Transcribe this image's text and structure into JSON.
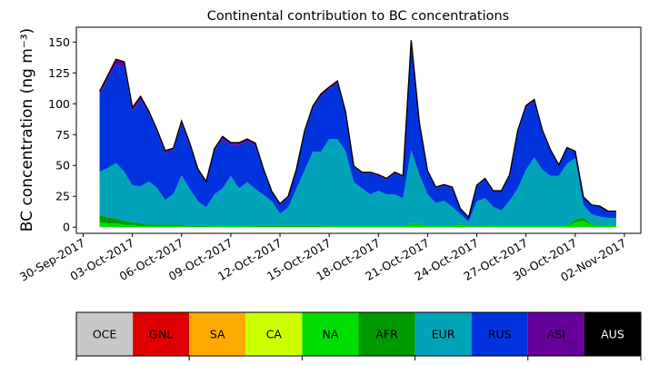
{
  "chart_data": {
    "type": "area",
    "title": "Continental contribution to BC concentrations",
    "ylabel": "BC concentration (ng m⁻³)",
    "xlabel": "",
    "ylim": [
      -5,
      162
    ],
    "xlim": [
      "2017-09-29T14:00",
      "2017-11-03T00:00"
    ],
    "yticks": [
      0,
      25,
      50,
      75,
      100,
      125,
      150
    ],
    "xtick_labels": [
      "30-Sep-2017",
      "03-Oct-2017",
      "06-Oct-2017",
      "09-Oct-2017",
      "12-Oct-2017",
      "15-Oct-2017",
      "18-Oct-2017",
      "21-Oct-2017",
      "24-Oct-2017",
      "27-Oct-2017",
      "30-Oct-2017",
      "02-Nov-2017"
    ],
    "xtick_dates": [
      "2017-09-30",
      "2017-10-03",
      "2017-10-06",
      "2017-10-09",
      "2017-10-12",
      "2017-10-15",
      "2017-10-18",
      "2017-10-21",
      "2017-10-24",
      "2017-10-27",
      "2017-10-30",
      "2017-11-02"
    ],
    "x": [
      "2017-10-01T00:00",
      "2017-10-01T12:00",
      "2017-10-02T00:00",
      "2017-10-02T12:00",
      "2017-10-03T00:00",
      "2017-10-03T12:00",
      "2017-10-04T00:00",
      "2017-10-04T12:00",
      "2017-10-05T00:00",
      "2017-10-05T12:00",
      "2017-10-06T00:00",
      "2017-10-06T12:00",
      "2017-10-07T00:00",
      "2017-10-07T12:00",
      "2017-10-08T00:00",
      "2017-10-08T12:00",
      "2017-10-09T00:00",
      "2017-10-09T12:00",
      "2017-10-10T00:00",
      "2017-10-10T12:00",
      "2017-10-11T00:00",
      "2017-10-11T12:00",
      "2017-10-12T00:00",
      "2017-10-12T12:00",
      "2017-10-13T00:00",
      "2017-10-13T12:00",
      "2017-10-14T00:00",
      "2017-10-14T12:00",
      "2017-10-15T00:00",
      "2017-10-15T12:00",
      "2017-10-16T00:00",
      "2017-10-16T12:00",
      "2017-10-17T00:00",
      "2017-10-17T12:00",
      "2017-10-18T00:00",
      "2017-10-18T12:00",
      "2017-10-19T00:00",
      "2017-10-19T12:00",
      "2017-10-20T00:00",
      "2017-10-20T12:00",
      "2017-10-21T00:00",
      "2017-10-21T12:00",
      "2017-10-22T00:00",
      "2017-10-22T12:00",
      "2017-10-23T00:00",
      "2017-10-23T12:00",
      "2017-10-24T00:00",
      "2017-10-24T12:00",
      "2017-10-25T00:00",
      "2017-10-25T12:00",
      "2017-10-26T00:00",
      "2017-10-26T12:00",
      "2017-10-27T00:00",
      "2017-10-27T12:00",
      "2017-10-28T00:00",
      "2017-10-28T12:00",
      "2017-10-29T00:00",
      "2017-10-29T12:00",
      "2017-10-30T00:00",
      "2017-10-30T12:00",
      "2017-10-31T00:00",
      "2017-10-31T12:00",
      "2017-11-01T00:00",
      "2017-11-01T12:00"
    ],
    "series": [
      {
        "name": "OCE",
        "color": "#c8c8c8",
        "values": [
          0,
          0,
          0,
          0,
          0,
          0,
          0,
          0,
          0,
          0,
          0,
          0,
          0,
          0,
          0,
          0,
          0,
          0,
          0,
          0,
          0,
          0,
          0,
          0,
          0,
          0,
          0,
          0,
          0,
          0,
          0,
          0,
          0,
          0,
          0,
          0,
          0,
          0,
          0,
          0,
          0,
          0,
          0,
          0,
          0,
          0,
          0,
          0,
          0,
          0,
          0,
          0,
          0,
          0,
          0,
          0,
          0,
          0,
          0,
          0,
          0,
          0,
          0,
          0
        ]
      },
      {
        "name": "GNL",
        "color": "#e00000",
        "values": [
          0,
          0,
          0,
          0,
          0,
          0,
          0,
          0,
          0,
          0,
          0,
          0,
          0,
          0,
          0,
          0,
          0,
          0,
          0,
          0,
          0,
          0,
          0,
          0,
          0,
          0,
          0,
          0,
          0,
          0,
          0,
          0,
          0,
          0,
          0,
          0,
          0,
          0,
          0,
          0,
          0,
          0,
          0,
          0,
          0,
          0,
          0,
          0,
          0,
          0,
          0,
          0,
          0,
          0,
          0,
          0,
          0,
          0,
          0,
          0,
          0,
          0,
          0,
          0
        ]
      },
      {
        "name": "SA",
        "color": "#ffaa00",
        "values": [
          0,
          0,
          0,
          0,
          0,
          0,
          0,
          0,
          0,
          0,
          0,
          0,
          0,
          0,
          0,
          0,
          0,
          0,
          0,
          0,
          0,
          0,
          0,
          0,
          0,
          0,
          0,
          0,
          0,
          0,
          0,
          0,
          0,
          0,
          0,
          0,
          0,
          0,
          0,
          0,
          0,
          0,
          0,
          0,
          0,
          0,
          0,
          0,
          0,
          0,
          0,
          0,
          0,
          0,
          0,
          0,
          0,
          0,
          0,
          0,
          0,
          0,
          0,
          0
        ]
      },
      {
        "name": "CA",
        "color": "#ccff00",
        "values": [
          0,
          0,
          0,
          0,
          0,
          0,
          0,
          0,
          0,
          0,
          0,
          0,
          0,
          0,
          0,
          0,
          0,
          0,
          0,
          0,
          0,
          0,
          0,
          0,
          0,
          0,
          0,
          0,
          0,
          0,
          0,
          0,
          0,
          0,
          0,
          0,
          0,
          0,
          0,
          0,
          0,
          0,
          0,
          0,
          0,
          0,
          0,
          0,
          0,
          0,
          0,
          0,
          0,
          0,
          0,
          0,
          0,
          0,
          0,
          0,
          0,
          0,
          0,
          0
        ]
      },
      {
        "name": "NA",
        "color": "#00dd00",
        "values": [
          4,
          3,
          3,
          2,
          2,
          1,
          1,
          1,
          1,
          1,
          1,
          0.5,
          0.5,
          0.5,
          1,
          1,
          1,
          1,
          1,
          0.5,
          0.5,
          0.5,
          0.5,
          0.5,
          0.5,
          0.5,
          0.5,
          0.5,
          1,
          1,
          1,
          1,
          1,
          1,
          1,
          1,
          1,
          1,
          2,
          2,
          1,
          1,
          1,
          1,
          2,
          1,
          0.5,
          1,
          1,
          1,
          1,
          1,
          1,
          1,
          1,
          1,
          1,
          1,
          4,
          5,
          2,
          1,
          1,
          1
        ]
      },
      {
        "name": "AFR",
        "color": "#009900",
        "values": [
          6,
          5,
          4,
          3,
          2,
          2,
          1,
          1,
          1,
          1,
          1,
          0.5,
          0.5,
          0.5,
          0.5,
          0.5,
          0.5,
          0.5,
          0.5,
          0.5,
          0.5,
          0.5,
          0.5,
          0.5,
          0.5,
          0.5,
          0.5,
          0.5,
          0.5,
          0.5,
          0.5,
          0.5,
          0.5,
          0.5,
          0.5,
          0.5,
          0.5,
          0.5,
          0.5,
          0.5,
          0.5,
          0.5,
          0.5,
          0.5,
          0.5,
          0.5,
          0.5,
          0.5,
          0.5,
          0.5,
          0.5,
          0.5,
          0.5,
          0.5,
          0.5,
          0.5,
          0.5,
          0.5,
          2,
          3,
          0.5,
          0.5,
          0.5,
          0.5
        ]
      },
      {
        "name": "EUR",
        "color": "#00a3b8",
        "values": [
          35,
          40,
          45,
          40,
          30,
          30,
          35,
          30,
          20,
          25,
          40,
          30,
          20,
          15,
          25,
          30,
          40,
          30,
          35,
          30,
          25,
          20,
          10,
          15,
          30,
          45,
          60,
          60,
          70,
          70,
          60,
          35,
          30,
          25,
          28,
          25,
          25,
          22,
          60,
          40,
          25,
          18,
          20,
          15,
          8,
          3,
          20,
          22,
          15,
          12,
          20,
          30,
          45,
          55,
          45,
          40,
          40,
          50,
          50,
          10,
          8,
          7,
          6,
          6
        ]
      },
      {
        "name": "RUS",
        "color": "#0033dd",
        "values": [
          62,
          72,
          80,
          85,
          60,
          70,
          55,
          45,
          38,
          35,
          42,
          35,
          25,
          20,
          35,
          40,
          25,
          35,
          33,
          35,
          20,
          7,
          7,
          8,
          15,
          30,
          35,
          45,
          40,
          45,
          30,
          12,
          12,
          17,
          12,
          12,
          17,
          17,
          83,
          40,
          18,
          12,
          12,
          15,
          4,
          3,
          12,
          15,
          12,
          15,
          20,
          45,
          50,
          45,
          30,
          20,
          8,
          12,
          5,
          6,
          7,
          8,
          5,
          5
        ]
      },
      {
        "name": "ASI",
        "color": "#660099",
        "values": [
          3,
          3,
          4,
          4,
          3,
          3,
          2,
          2,
          2,
          2,
          2,
          2,
          1,
          1,
          2,
          2,
          2,
          2,
          2,
          2,
          1,
          1,
          1,
          1,
          1,
          2,
          2,
          2,
          2,
          2,
          2,
          1,
          1,
          1,
          1,
          1,
          1,
          1,
          6,
          2,
          1,
          1,
          1,
          1,
          0.5,
          0.5,
          1,
          1,
          1,
          1,
          1,
          2,
          2,
          2,
          2,
          1,
          1,
          1,
          0.5,
          0.5,
          0.5,
          0.5,
          0.5,
          0.5
        ]
      },
      {
        "name": "AUS",
        "color": "#000000",
        "values": [
          0,
          0,
          0,
          0,
          0,
          0,
          0,
          0,
          0,
          0,
          0,
          0,
          0,
          0,
          0,
          0,
          0,
          0,
          0,
          0,
          0,
          0,
          0,
          0,
          0,
          0,
          0,
          0,
          0,
          0,
          0,
          0,
          0,
          0,
          0,
          0,
          0,
          0,
          0,
          0,
          0,
          0,
          0,
          0,
          0,
          0,
          0,
          0,
          0,
          0,
          0,
          0,
          0,
          0,
          0,
          0,
          0,
          0,
          0,
          0,
          0,
          0,
          0,
          0
        ]
      }
    ],
    "legend": {
      "placement": "bottom",
      "entries": [
        {
          "label": "OCE",
          "color": "#c8c8c8",
          "text_color": "#000000"
        },
        {
          "label": "GNL",
          "color": "#e00000",
          "text_color": "#000000"
        },
        {
          "label": "SA",
          "color": "#ffaa00",
          "text_color": "#000000"
        },
        {
          "label": "CA",
          "color": "#ccff00",
          "text_color": "#000000"
        },
        {
          "label": "NA",
          "color": "#00dd00",
          "text_color": "#000000"
        },
        {
          "label": "AFR",
          "color": "#009900",
          "text_color": "#000000"
        },
        {
          "label": "EUR",
          "color": "#00a3b8",
          "text_color": "#000000"
        },
        {
          "label": "RUS",
          "color": "#0033dd",
          "text_color": "#000000"
        },
        {
          "label": "ASI",
          "color": "#660099",
          "text_color": "#000000"
        },
        {
          "label": "AUS",
          "color": "#000000",
          "text_color": "#ffffff"
        }
      ]
    },
    "total_line_color": "#000000",
    "grid": false
  }
}
